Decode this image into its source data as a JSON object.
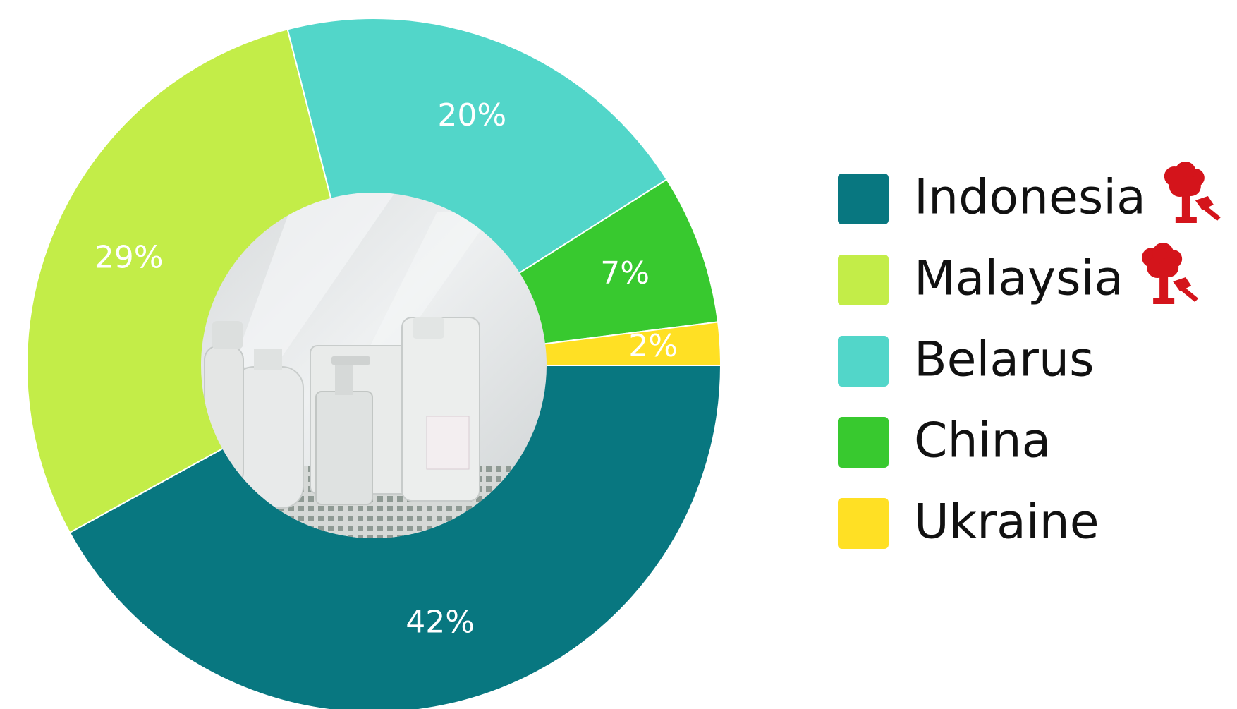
{
  "chart_data": {
    "type": "pie",
    "categories": [
      "Indonesia",
      "Malaysia",
      "Belarus",
      "China",
      "Ukraine"
    ],
    "values": [
      42,
      29,
      20,
      7,
      2
    ],
    "labels": [
      "42%",
      "29%",
      "20%",
      "7%",
      "2%"
    ],
    "colors": [
      "#087780",
      "#c3ed48",
      "#52d6c9",
      "#38c92f",
      "#ffe024"
    ],
    "donut": true,
    "legend_position": "right",
    "legend_icons": {
      "Indonesia": "deforestation-tree-axe-icon",
      "Malaysia": "deforestation-tree-axe-icon"
    },
    "center_image": "cleaning-bottles-photo"
  }
}
